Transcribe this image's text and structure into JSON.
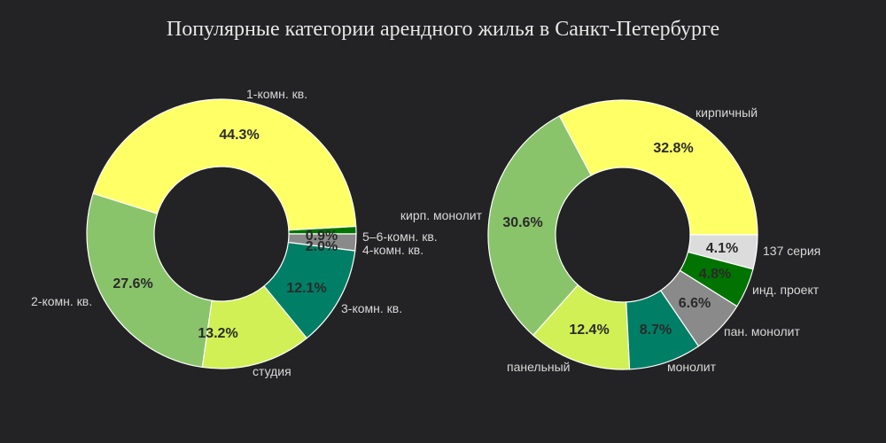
{
  "title": "Популярные категории арендного жилья в Санкт-Петербурге",
  "chart_data": [
    {
      "type": "pie",
      "hole": true,
      "slices": [
        {
          "label": "5–6-комн. кв.",
          "value": 0.9,
          "pct_text": "0.9%",
          "color": "#007300"
        },
        {
          "label": "1-комн. кв.",
          "value": 44.3,
          "pct_text": "44.3%",
          "color": "#ffff66"
        },
        {
          "label": "2-комн. кв.",
          "value": 27.6,
          "pct_text": "27.6%",
          "color": "#89c46a"
        },
        {
          "label": "студия",
          "value": 13.2,
          "pct_text": "13.2%",
          "color": "#d0f055"
        },
        {
          "label": "3-комн. кв.",
          "value": 12.1,
          "pct_text": "12.1%",
          "color": "#007f66"
        },
        {
          "label": "4-комн. кв.",
          "value": 2.0,
          "pct_text": "2.0%",
          "color": "#8a8a8a"
        }
      ]
    },
    {
      "type": "pie",
      "hole": true,
      "slices": [
        {
          "label": "кирпичный",
          "value": 32.8,
          "pct_text": "32.8%",
          "color": "#ffff66"
        },
        {
          "label": "кирп. монолит",
          "value": 30.6,
          "pct_text": "30.6%",
          "color": "#89c46a"
        },
        {
          "label": "панельный",
          "value": 12.4,
          "pct_text": "12.4%",
          "color": "#d0f055"
        },
        {
          "label": "монолит",
          "value": 8.7,
          "pct_text": "8.7%",
          "color": "#007f66"
        },
        {
          "label": "пан. монолит",
          "value": 6.6,
          "pct_text": "6.6%",
          "color": "#8a8a8a"
        },
        {
          "label": "инд. проект",
          "value": 4.8,
          "pct_text": "4.8%",
          "color": "#007300"
        },
        {
          "label": "137 серия",
          "value": 4.1,
          "pct_text": "4.1%",
          "color": "#dcdcdc"
        }
      ]
    }
  ]
}
